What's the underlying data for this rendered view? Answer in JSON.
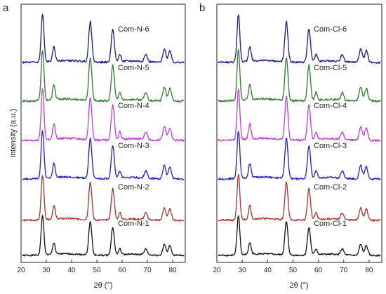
{
  "chart_data": [
    {
      "type": "line",
      "panel": "a",
      "xlabel": "2θ (°)",
      "ylabel": "Intensity (a.u.)",
      "xlim": [
        20,
        85
      ],
      "xticks": [
        20,
        30,
        40,
        50,
        60,
        70,
        80
      ],
      "yticks": "none",
      "grid": false,
      "legend": "labels placed beside each trace",
      "peak_positions_2theta": [
        28.5,
        33.0,
        47.4,
        56.3,
        59.1,
        69.4,
        76.7,
        78.9
      ],
      "relative_peak_intensities": [
        1.0,
        0.3,
        0.85,
        0.7,
        0.15,
        0.15,
        0.28,
        0.25
      ],
      "series": [
        {
          "name": "Com-N-6",
          "color": "#1a1a8c",
          "stack_index": 5
        },
        {
          "name": "Com-N-5",
          "color": "#2e7d32",
          "stack_index": 4
        },
        {
          "name": "Com-N-4",
          "color": "#c13ee0",
          "stack_index": 3
        },
        {
          "name": "Com-N-3",
          "color": "#1f1fd6",
          "stack_index": 2
        },
        {
          "name": "Com-N-2",
          "color": "#b03030",
          "stack_index": 1
        },
        {
          "name": "Com-N-1",
          "color": "#111111",
          "stack_index": 0
        }
      ]
    },
    {
      "type": "line",
      "panel": "b",
      "xlabel": "2θ (°)",
      "ylabel": "",
      "xlim": [
        20,
        85
      ],
      "xticks": [
        20,
        30,
        40,
        50,
        60,
        70,
        80
      ],
      "yticks": "none",
      "grid": false,
      "legend": "labels placed beside each trace",
      "peak_positions_2theta": [
        28.5,
        33.0,
        47.4,
        56.3,
        59.1,
        69.4,
        76.7,
        78.9
      ],
      "relative_peak_intensities": [
        1.0,
        0.3,
        0.85,
        0.7,
        0.15,
        0.15,
        0.28,
        0.25
      ],
      "series": [
        {
          "name": "Com-Cl-6",
          "color": "#1a1a8c",
          "stack_index": 5
        },
        {
          "name": "Com-Cl-5",
          "color": "#2e7d32",
          "stack_index": 4
        },
        {
          "name": "Com-Cl-4",
          "color": "#c13ee0",
          "stack_index": 3
        },
        {
          "name": "Com-Cl-3",
          "color": "#1f1fd6",
          "stack_index": 2
        },
        {
          "name": "Com-Cl-2",
          "color": "#b03030",
          "stack_index": 1
        },
        {
          "name": "Com-Cl-1",
          "color": "#111111",
          "stack_index": 0
        }
      ]
    }
  ]
}
